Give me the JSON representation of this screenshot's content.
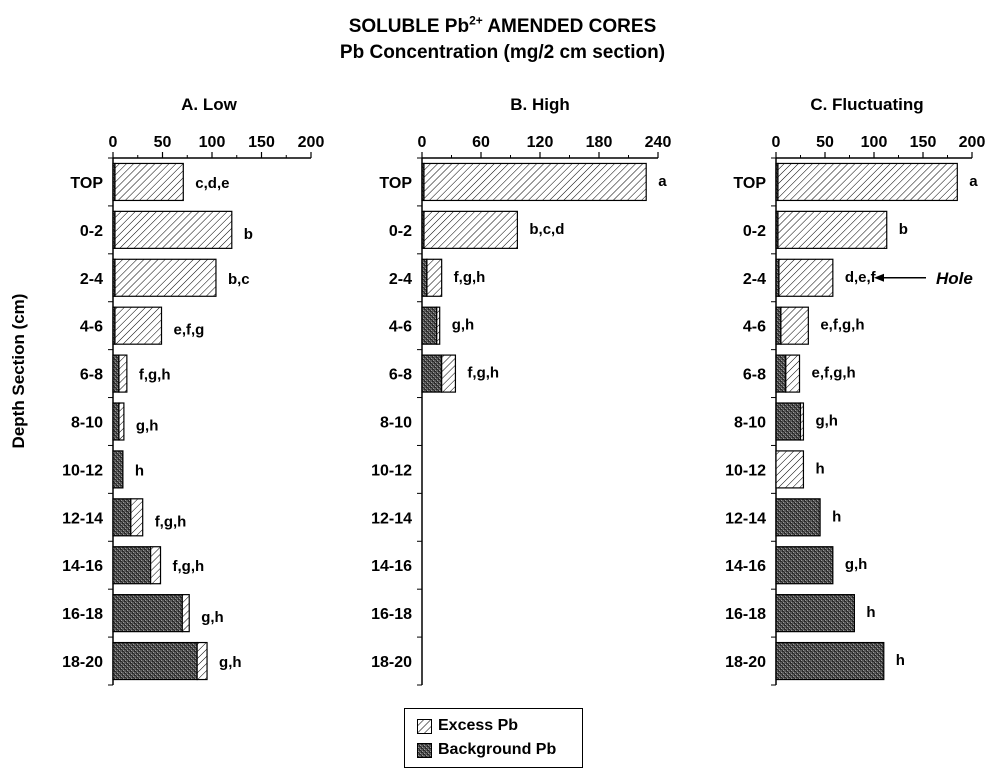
{
  "title": "SOLUBLE Pb",
  "title_sup": "2+",
  "title_suffix": " AMENDED CORES",
  "subtitle": "Pb Concentration (mg/2 cm section)",
  "ylabel": "Depth Section (cm)",
  "annotation": "Hole",
  "colors": {
    "excess_fill": "#ffffff",
    "background_fill": "#555555",
    "ink": "#000000"
  },
  "legend": [
    {
      "label": "Excess Pb",
      "pattern": "hatch"
    },
    {
      "label": "Background Pb",
      "pattern": "crosshatch"
    }
  ],
  "chart_data": [
    {
      "type": "bar",
      "orientation": "horizontal",
      "stacked": true,
      "title": "A. Low",
      "categories": [
        "TOP",
        "0-2",
        "2-4",
        "4-6",
        "6-8",
        "8-10",
        "10-12",
        "12-14",
        "14-16",
        "16-18",
        "18-20"
      ],
      "xlim": [
        0,
        200
      ],
      "xticks": [
        "0",
        "50",
        "100",
        "150",
        "200"
      ],
      "series": [
        {
          "name": "Background Pb",
          "values": [
            2,
            2,
            2,
            2,
            6,
            6,
            10,
            18,
            38,
            70,
            85
          ]
        },
        {
          "name": "Excess Pb",
          "values": [
            69,
            118,
            102,
            47,
            8,
            5,
            0,
            12,
            10,
            7,
            10
          ]
        }
      ],
      "letters": [
        "c,d,e",
        "b",
        "b,c",
        "e,f,g",
        "f,g,h",
        "g,h",
        "h",
        "f,g,h",
        "f,g,h",
        "g,h",
        "g,h"
      ]
    },
    {
      "type": "bar",
      "orientation": "horizontal",
      "stacked": true,
      "title": "B. High",
      "categories": [
        "TOP",
        "0-2",
        "2-4",
        "4-6",
        "6-8",
        "8-10",
        "10-12",
        "12-14",
        "14-16",
        "16-18",
        "18-20"
      ],
      "xlim": [
        0,
        240
      ],
      "xticks": [
        "0",
        "60",
        "120",
        "180",
        "240"
      ],
      "series": [
        {
          "name": "Background Pb",
          "values": [
            2,
            2,
            5,
            15,
            20,
            null,
            null,
            null,
            null,
            null,
            null
          ]
        },
        {
          "name": "Excess Pb",
          "values": [
            226,
            95,
            15,
            3,
            14,
            null,
            null,
            null,
            null,
            null,
            null
          ]
        }
      ],
      "letters": [
        "a",
        "b,c,d",
        "f,g,h",
        "g,h",
        "f,g,h",
        "",
        "",
        "",
        "",
        "",
        ""
      ]
    },
    {
      "type": "bar",
      "orientation": "horizontal",
      "stacked": true,
      "title": "C. Fluctuating",
      "categories": [
        "TOP",
        "0-2",
        "2-4",
        "4-6",
        "6-8",
        "8-10",
        "10-12",
        "12-14",
        "14-16",
        "16-18",
        "18-20"
      ],
      "xlim": [
        0,
        200
      ],
      "xticks": [
        "0",
        "50",
        "100",
        "150",
        "200"
      ],
      "series": [
        {
          "name": "Background Pb",
          "values": [
            2,
            2,
            3,
            5,
            10,
            25,
            0,
            45,
            58,
            80,
            110
          ]
        },
        {
          "name": "Excess Pb",
          "values": [
            183,
            111,
            55,
            28,
            14,
            3,
            28,
            0,
            0,
            0,
            0
          ]
        }
      ],
      "letters": [
        "a",
        "b",
        "d,e,f",
        "e,f,g,h",
        "e,f,g,h",
        "g,h",
        "h",
        "h",
        "g,h",
        "h",
        "h"
      ]
    }
  ]
}
